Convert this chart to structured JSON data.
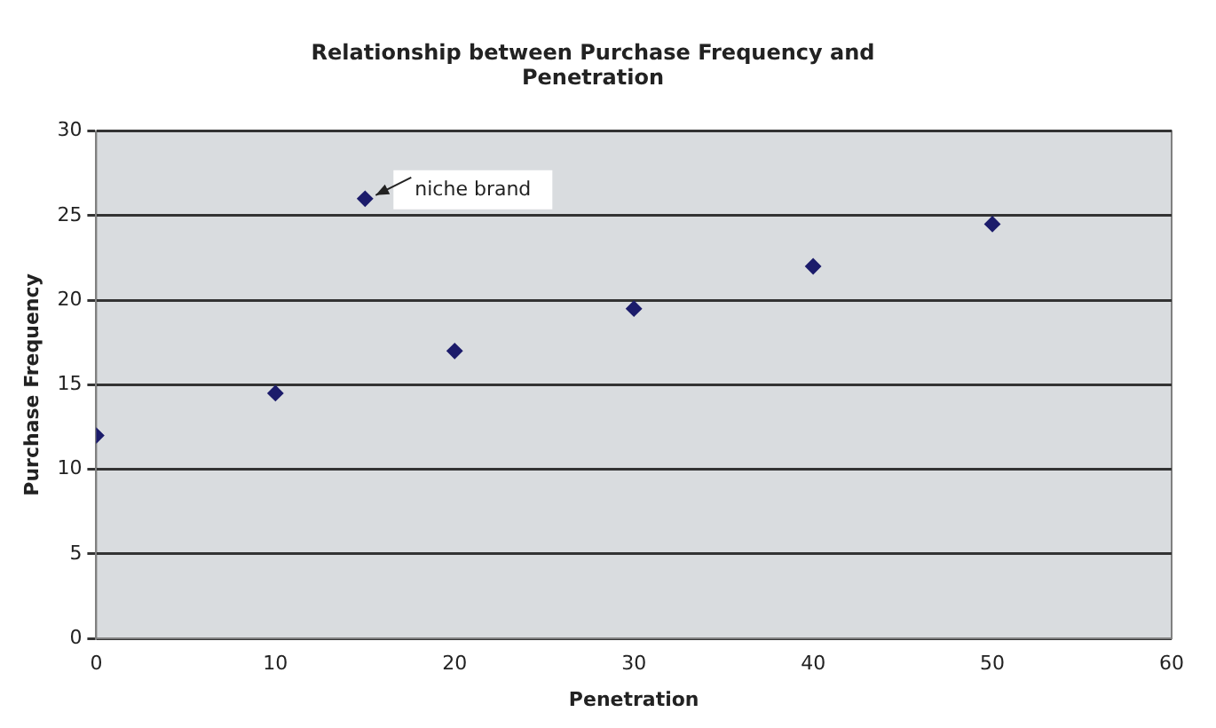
{
  "chart_data": {
    "type": "scatter",
    "title": "Relationship between Purchase Frequency and Penetration",
    "xlabel": "Penetration",
    "ylabel": "Purchase Frequency",
    "x": [
      0,
      10,
      15,
      20,
      30,
      40,
      50
    ],
    "values": [
      12,
      14.5,
      26,
      17,
      19.5,
      22,
      24.5
    ],
    "color": "#1c1c6b",
    "marker": "diamond",
    "xlim": [
      0,
      60
    ],
    "xticks": [
      0,
      10,
      20,
      30,
      40,
      50,
      60
    ],
    "ylim": [
      0,
      30
    ],
    "yticks": [
      0,
      5,
      10,
      15,
      20,
      25,
      30
    ],
    "grid": "y",
    "legend": false,
    "annotations": [
      {
        "text": "niche brand",
        "x": 15,
        "y": 26
      }
    ]
  }
}
